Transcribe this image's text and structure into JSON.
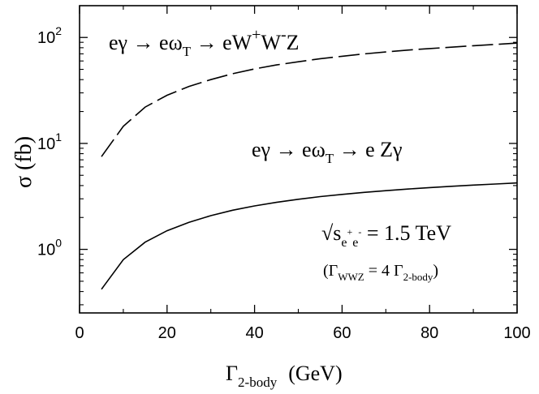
{
  "chart_data": {
    "type": "line",
    "xlabel": {
      "base": "Γ",
      "sub": "2-body",
      "unit": "(GeV)"
    },
    "ylabel": "σ (fb)",
    "xlim": [
      0,
      100
    ],
    "ylim_log10": [
      -0.6,
      2.3
    ],
    "y_scale": "log",
    "x_ticks": [
      0,
      20,
      40,
      60,
      80,
      100
    ],
    "x_tick_labels": [
      "0",
      "20",
      "40",
      "60",
      "80",
      "100"
    ],
    "y_ticks": [
      1,
      10,
      100
    ],
    "y_tick_labels": [
      {
        "base": "10",
        "exp": "0"
      },
      {
        "base": "10",
        "exp": "1"
      },
      {
        "base": "10",
        "exp": "2"
      }
    ],
    "grid": false,
    "series": [
      {
        "name": "eγ → eω_T → eW⁺W⁻Z",
        "style": "dashed",
        "x": [
          5,
          10,
          15,
          20,
          25,
          30,
          35,
          40,
          45,
          50,
          55,
          60,
          65,
          70,
          75,
          80,
          85,
          90,
          95,
          100
        ],
        "y": [
          7.5,
          14.5,
          22,
          28.5,
          34.5,
          40,
          45.5,
          50.5,
          55,
          59,
          63,
          66.5,
          70,
          73,
          76,
          78.5,
          81,
          83.5,
          86,
          88.5
        ]
      },
      {
        "name": "eγ → eω_T → e Zγ",
        "style": "solid",
        "x": [
          5,
          10,
          15,
          20,
          25,
          30,
          35,
          40,
          45,
          50,
          55,
          60,
          65,
          70,
          75,
          80,
          85,
          90,
          95,
          100
        ],
        "y": [
          0.42,
          0.8,
          1.17,
          1.5,
          1.8,
          2.08,
          2.34,
          2.57,
          2.78,
          2.97,
          3.15,
          3.3,
          3.45,
          3.58,
          3.71,
          3.83,
          3.94,
          4.04,
          4.14,
          4.24
        ]
      }
    ],
    "annotations": {
      "ww_label": {
        "pre": "eγ → eω",
        "sub": "T",
        "mid": " → eW",
        "sup1": "+",
        "mid2": "W",
        "sup2": "-",
        "post": "Z"
      },
      "zg_label": {
        "pre": "eγ → eω",
        "sub": "T",
        "post": " → e Zγ"
      },
      "energy": {
        "root": "√s",
        "sub1": "e",
        "sup1": "+",
        "sub2": "e",
        "sup2": "-",
        "post": " = 1.5 TeV"
      },
      "width": {
        "pre": "(Γ",
        "sub1": "WWZ",
        "mid": " = 4 Γ",
        "sub2": "2-body",
        "post": ")"
      }
    }
  }
}
